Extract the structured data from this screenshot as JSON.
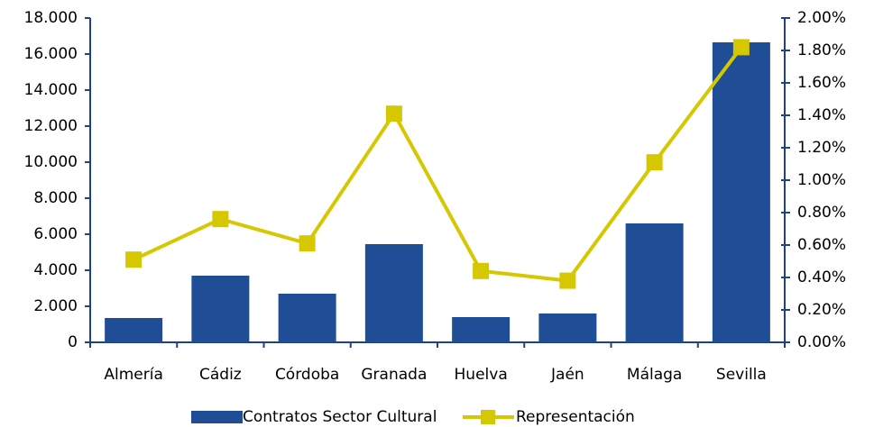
{
  "chart_data": {
    "type": "bar",
    "categories": [
      "Almería",
      "Cádiz",
      "Córdoba",
      "Granada",
      "Huelva",
      "Jaén",
      "Málaga",
      "Sevilla"
    ],
    "series": [
      {
        "name": "Contratos Sector Cultural",
        "type": "bar",
        "color": "#1f4e96",
        "values": [
          1350,
          3700,
          2700,
          5450,
          1400,
          1600,
          6600,
          16650
        ]
      },
      {
        "name": "Representación",
        "type": "line",
        "axis": "y2",
        "color": "#d6c800",
        "values": [
          0.51,
          0.76,
          0.61,
          1.41,
          0.44,
          0.38,
          1.11,
          1.82
        ]
      }
    ],
    "ylim": [
      0,
      18000
    ],
    "yticks": [
      0,
      {
        "value": 2000,
        "label": "2.000"
      },
      {
        "value": 4000,
        "label": "4.000"
      },
      {
        "value": 6000,
        "label": "6.000"
      },
      {
        "value": 8000,
        "label": "8.000"
      },
      {
        "value": 10000,
        "label": "10.000"
      },
      {
        "value": 12000,
        "label": "12.000"
      },
      {
        "value": 14000,
        "label": "14.000"
      },
      {
        "value": 16000,
        "label": "16.000"
      },
      {
        "value": 18000,
        "label": "18.000"
      }
    ],
    "y2lim": [
      0,
      2
    ],
    "y2ticks": [
      {
        "value": 0,
        "label": "0.00%"
      },
      {
        "value": 0.2,
        "label": "0.20%"
      },
      {
        "value": 0.4,
        "label": "0.40%"
      },
      {
        "value": 0.6,
        "label": "0.60%"
      },
      {
        "value": 0.8,
        "label": "0.80%"
      },
      {
        "value": 1.0,
        "label": "1.00%"
      },
      {
        "value": 1.2,
        "label": "1.20%"
      },
      {
        "value": 1.4,
        "label": "1.40%"
      },
      {
        "value": 1.6,
        "label": "1.60%"
      },
      {
        "value": 1.8,
        "label": "1.80%"
      },
      {
        "value": 2.0,
        "label": "2.00%"
      }
    ],
    "legend": "bottom"
  }
}
